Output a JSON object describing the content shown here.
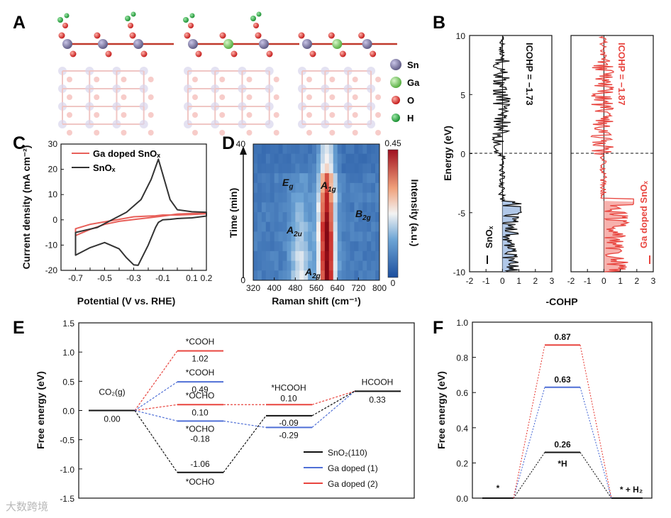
{
  "panels": {
    "A": "A",
    "B": "B",
    "C": "C",
    "D": "D",
    "E": "E",
    "F": "F"
  },
  "legend_atoms": [
    {
      "label": "Sn",
      "color": "#7e7a9e"
    },
    {
      "label": "Ga",
      "color": "#7fd36a"
    },
    {
      "label": "O",
      "color": "#e0302b"
    },
    {
      "label": "H",
      "color": "#1e9a3c"
    }
  ],
  "watermark": "大数跨境",
  "chart_data": [
    {
      "id": "C",
      "type": "line",
      "xlabel": "Potential (V vs. RHE)",
      "ylabel": "Current density (mA cm⁻²)",
      "xlim": [
        -0.8,
        0.2
      ],
      "ylim": [
        -20,
        30
      ],
      "xticks": [
        "-0.8",
        "-0.7",
        "-0.6",
        "-0.5",
        "-0.4",
        "-0.3",
        "-0.2",
        "-0.1",
        "0.0",
        "0.1",
        "0.2"
      ],
      "yticks": [
        "-20",
        "-10",
        "0",
        "10",
        "20",
        "30"
      ],
      "series": [
        {
          "name": "Ga doped SnOₓ",
          "color": "#e8605a",
          "x": [
            -0.7,
            -0.6,
            -0.5,
            -0.4,
            -0.3,
            -0.2,
            -0.15,
            -0.1,
            0.0,
            0.1,
            0.2,
            0.2,
            0.1,
            0.0,
            -0.1,
            -0.2,
            -0.3,
            -0.4,
            -0.5,
            -0.6,
            -0.7
          ],
          "y": [
            -3.5,
            -1.8,
            -0.8,
            0.2,
            1.2,
            1.5,
            1.6,
            1.9,
            1.9,
            2.1,
            2.4,
            2.7,
            2.5,
            2.3,
            1.5,
            0.8,
            0.1,
            -0.6,
            -1.8,
            -3.8,
            -6.2
          ]
        },
        {
          "name": "SnOₓ",
          "color": "#333333",
          "x": [
            -0.7,
            -0.6,
            -0.5,
            -0.4,
            -0.35,
            -0.3,
            -0.27,
            -0.2,
            -0.15,
            -0.13,
            -0.1,
            -0.05,
            0.0,
            0.1,
            0.2,
            0.2,
            0.1,
            0.0,
            -0.05,
            -0.1,
            -0.13,
            -0.18,
            -0.25,
            -0.35,
            -0.45,
            -0.55,
            -0.7
          ],
          "y": [
            -14,
            -11,
            -9,
            -11.5,
            -15,
            -17.8,
            -18,
            -10,
            -3,
            -1,
            0,
            0.2,
            0.5,
            0.8,
            1.5,
            3.0,
            3.2,
            4.0,
            8.0,
            18.0,
            24.0,
            16.0,
            8.0,
            3.0,
            0.0,
            -3.0,
            -5.0
          ]
        }
      ]
    },
    {
      "id": "D",
      "type": "heatmap",
      "xlabel": "Raman shift (cm⁻¹)",
      "ylabel": "Time (min)",
      "xticks": [
        "320",
        "400",
        "480",
        "560",
        "640",
        "720",
        "800"
      ],
      "yticks": [
        "0",
        "40"
      ],
      "colorbar": {
        "label": "Intensity (a.u.)",
        "min": "0",
        "max": "0.45"
      },
      "annotations": [
        {
          "text": "E",
          "sub": "g"
        },
        {
          "text": "A",
          "sub": "1g"
        },
        {
          "text": "A",
          "sub": "2u"
        },
        {
          "text": "B",
          "sub": "2g"
        },
        {
          "text": "A",
          "sub": "2g"
        }
      ]
    },
    {
      "id": "B",
      "type": "line",
      "xlabel": "-COHP",
      "ylabel": "Energy (eV)",
      "ylim": [
        -10,
        10
      ],
      "xlim": [
        -2,
        3
      ],
      "xticks": [
        "-2",
        "-1",
        "0",
        "1",
        "2",
        "3"
      ],
      "yticks": [
        "-10",
        "-5",
        "0",
        "5",
        "10"
      ],
      "series": [
        {
          "name": "SnOₓ",
          "color": "#111111",
          "annotation": "ICOHP = −1.73"
        },
        {
          "name": "Ga doped SnOₓ",
          "color": "#e8453f",
          "annotation": "ICOHP = −1.87"
        }
      ]
    },
    {
      "id": "E",
      "type": "line",
      "ylabel": "Free energy (eV)",
      "ylim": [
        -1.5,
        1.5
      ],
      "yticks": [
        "-1.5",
        "-1.0",
        "-0.5",
        "0.0",
        "0.5",
        "1.0",
        "1.5"
      ],
      "states": [
        {
          "species": "CO₂(g)",
          "value": "0.00",
          "energy": 0.0,
          "color": "#111111"
        },
        {
          "species": "*COOH",
          "value": "1.02",
          "energy": 1.02,
          "color": "#e8453f"
        },
        {
          "species": "*COOH",
          "value": "0.49",
          "energy": 0.49,
          "color": "#4f6fd6"
        },
        {
          "species": "*OCHO",
          "value": "0.10",
          "energy": 0.1,
          "color": "#e8453f"
        },
        {
          "species": "*OCHO",
          "value": "-0.18",
          "energy": -0.18,
          "color": "#4f6fd6"
        },
        {
          "species": "*OCHO",
          "value": "-1.06",
          "energy": -1.06,
          "color": "#111111"
        },
        {
          "species": "*HCOOH",
          "value": "0.10",
          "energy": 0.1,
          "color": "#e8453f"
        },
        {
          "species": "",
          "value": "-0.09",
          "energy": -0.09,
          "color": "#111111"
        },
        {
          "species": "",
          "value": "-0.29",
          "energy": -0.29,
          "color": "#4f6fd6"
        },
        {
          "species": "HCOOH",
          "value": "0.33",
          "energy": 0.33,
          "color": "#111111"
        }
      ],
      "legend": [
        {
          "name": "SnO₂(110)",
          "color": "#111111"
        },
        {
          "name": "Ga doped (1)",
          "color": "#4f6fd6"
        },
        {
          "name": "Ga doped (2)",
          "color": "#e8453f"
        }
      ]
    },
    {
      "id": "F",
      "type": "line",
      "ylabel": "Free energy (eV)",
      "ylim": [
        0.0,
        1.0
      ],
      "yticks": [
        "0.0",
        "0.2",
        "0.4",
        "0.6",
        "0.8",
        "1.0"
      ],
      "states": [
        {
          "label": "*",
          "value": 0.0
        },
        {
          "label": "*H",
          "values": [
            0.26,
            0.63,
            0.87
          ],
          "labels": [
            "0.26",
            "0.63",
            "0.87"
          ],
          "colors": [
            "#111111",
            "#4f6fd6",
            "#e8453f"
          ]
        },
        {
          "label": "* + H₂",
          "value": 0.0
        }
      ]
    }
  ]
}
